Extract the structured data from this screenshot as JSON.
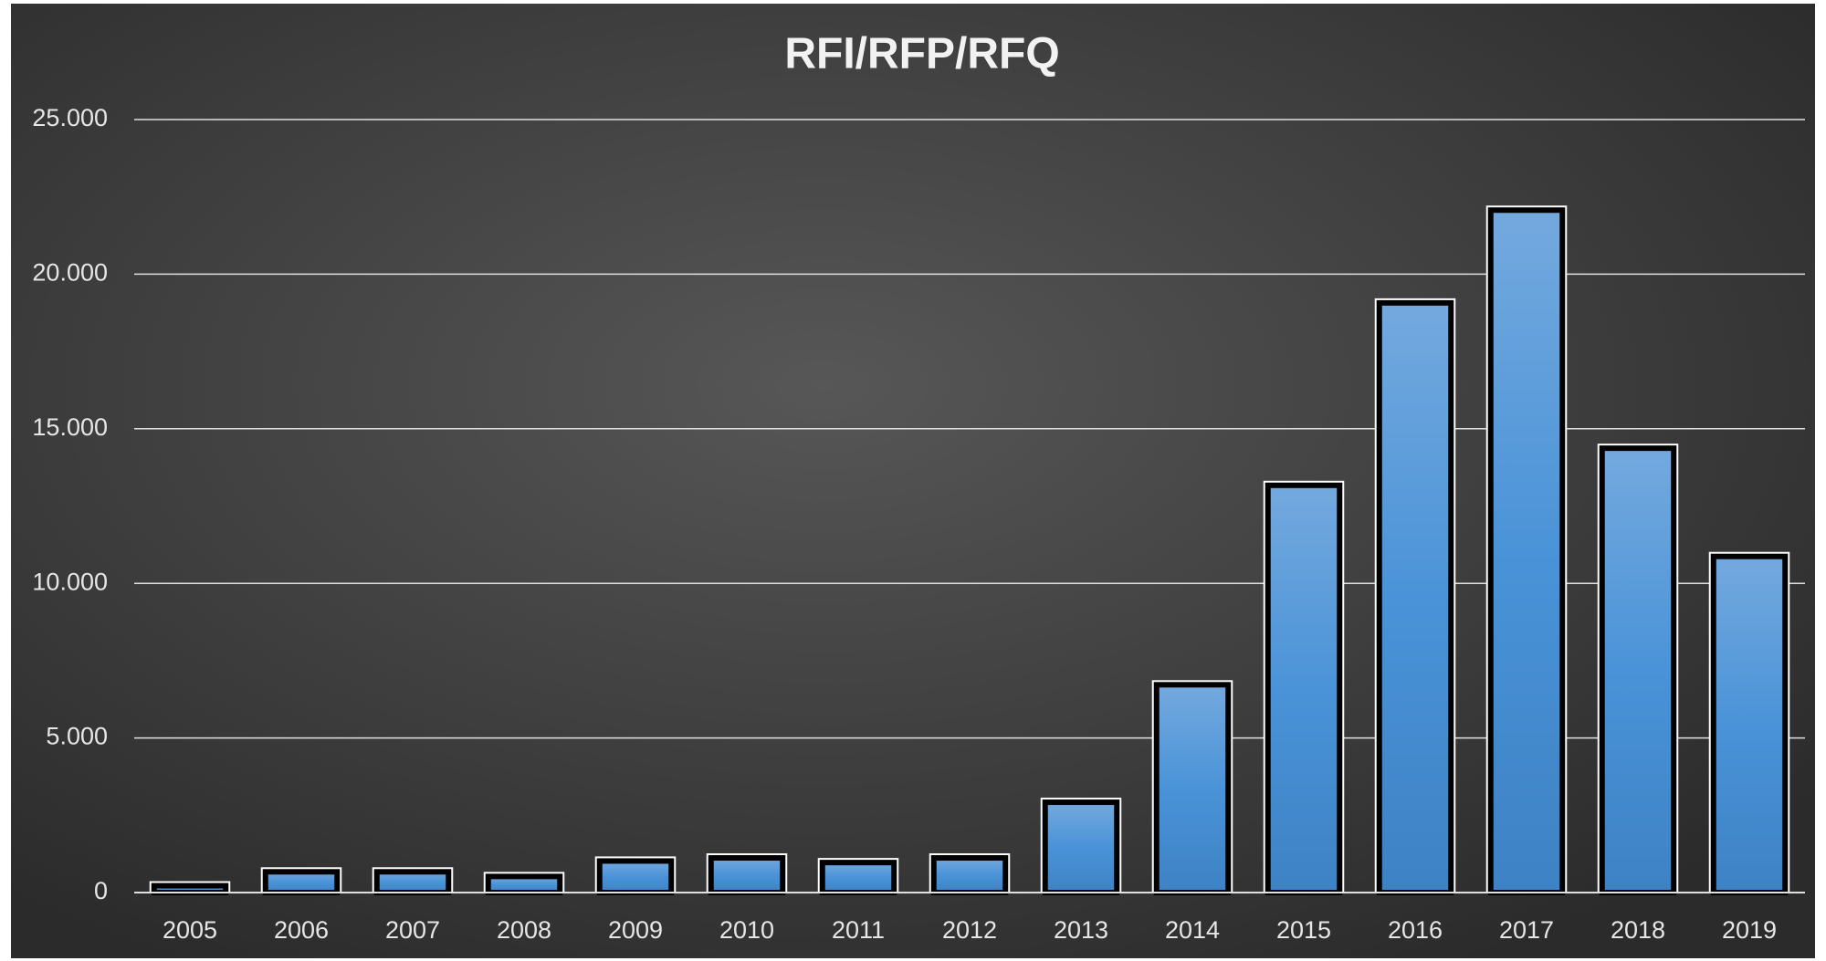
{
  "chart_data": {
    "type": "bar",
    "title": "RFI/RFP/RFQ",
    "categories": [
      "2005",
      "2006",
      "2007",
      "2008",
      "2009",
      "2010",
      "2011",
      "2012",
      "2013",
      "2014",
      "2015",
      "2016",
      "2017",
      "2018",
      "2019"
    ],
    "values": [
      250,
      700,
      700,
      550,
      1050,
      1150,
      1000,
      1150,
      2950,
      6750,
      13200,
      19100,
      22100,
      14400,
      10900
    ],
    "color": "#5b9bd5",
    "ylim": [
      0,
      25000
    ],
    "yticks": [
      0,
      {
        "value": 5000,
        "label": "5.000"
      },
      {
        "value": 10000,
        "label": "10.000"
      },
      {
        "value": 15000,
        "label": "15.000"
      },
      {
        "value": 20000,
        "label": "20.000"
      },
      {
        "value": 25000,
        "label": "25.000"
      }
    ],
    "grid": true
  }
}
